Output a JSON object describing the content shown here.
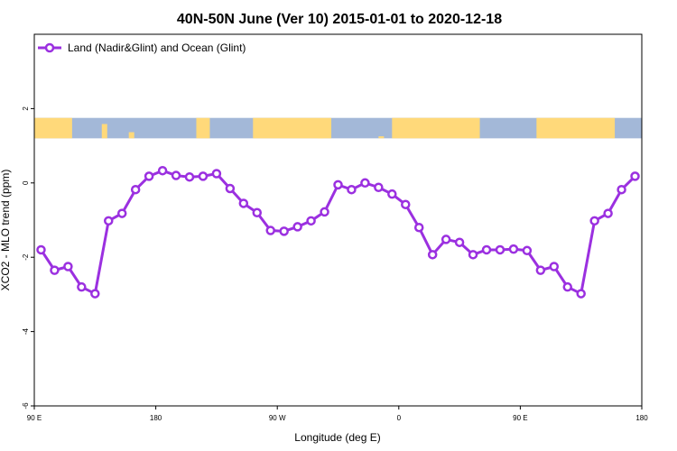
{
  "chart_data": {
    "type": "line",
    "title": "40N-50N June (Ver 10)   2015-01-01 to 2020-12-18",
    "xlabel": "Longitude (deg E)",
    "ylabel": "XCO2 - MLO trend (ppm)",
    "xlim": [
      90,
      540
    ],
    "ylim": [
      -6,
      4
    ],
    "x_ticks": [
      {
        "value": 90,
        "label": "90 E"
      },
      {
        "value": 180,
        "label": "180"
      },
      {
        "value": 270,
        "label": "90 W"
      },
      {
        "value": 360,
        "label": "0"
      },
      {
        "value": 450,
        "label": "90 E"
      },
      {
        "value": 540,
        "label": "180"
      }
    ],
    "y_ticks": [
      {
        "value": -6,
        "label": "-6"
      },
      {
        "value": -4,
        "label": "-4"
      },
      {
        "value": -2,
        "label": "-2"
      },
      {
        "value": 0,
        "label": "0"
      },
      {
        "value": 2,
        "label": "2"
      }
    ],
    "legend": {
      "position": "top-left"
    },
    "series": [
      {
        "name": "Land (Nadir&Glint) and Ocean (Glint)",
        "color": "#9b30e0",
        "x": [
          95,
          105,
          115,
          125,
          135,
          145,
          155,
          165,
          175,
          185,
          195,
          205,
          215,
          225,
          235,
          245,
          255,
          265,
          275,
          285,
          295,
          305,
          315,
          325,
          335,
          345,
          355,
          365,
          375,
          385,
          395,
          405,
          415,
          425,
          435,
          445,
          455,
          465,
          475,
          485,
          495,
          505,
          515,
          525,
          535
        ],
        "y": [
          -1.8,
          -2.35,
          -2.25,
          -2.8,
          -2.98,
          -1.02,
          -0.82,
          -0.18,
          0.18,
          0.33,
          0.2,
          0.16,
          0.18,
          0.25,
          -0.15,
          -0.55,
          -0.8,
          -1.28,
          -1.3,
          -1.18,
          -1.02,
          -0.78,
          -0.05,
          -0.18,
          0.0,
          -0.12,
          -0.3,
          -0.58,
          -1.2,
          -1.93,
          -1.52,
          -1.6,
          -1.93,
          -1.8,
          -1.8,
          -1.78,
          -1.82,
          -2.35,
          -2.25,
          -2.8,
          -2.98,
          -1.02,
          -0.82,
          -0.18,
          0.18
        ]
      }
    ],
    "map_strip": {
      "ocean_color": "#a3b8d8",
      "land_color": "#ffd97a",
      "y_range": [
        1.2,
        1.75
      ]
    }
  }
}
